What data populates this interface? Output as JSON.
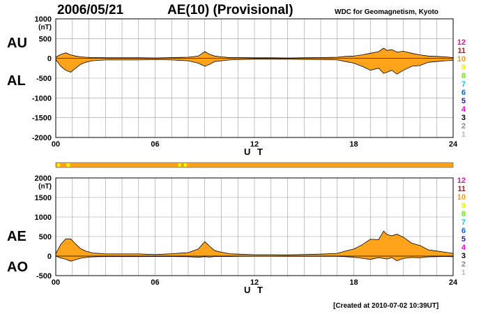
{
  "header": {
    "date": "2006/05/21",
    "title": "AE(10) (Provisional)",
    "source": "WDC for Geomagnetism, Kyoto"
  },
  "footer": {
    "created": "[Created at 2010-07-02 10:39UT]"
  },
  "chart_data": [
    {
      "type": "area",
      "panel": "AU/AL",
      "ylabel_upper": "AU",
      "ylabel_lower": "AL",
      "unit": "(nT)",
      "ylim": [
        -2000,
        1000
      ],
      "yticks": [
        1000,
        500,
        0,
        -500,
        -1000,
        -1500,
        -2000
      ],
      "xlabel": "U T",
      "xlim": [
        0,
        24
      ],
      "xticks": [
        "00",
        "06",
        "12",
        "18",
        "24"
      ],
      "grid": true,
      "fill_color": "#ffa31a",
      "series": [
        {
          "x": [
            0,
            0.3,
            0.6,
            0.9,
            1.2,
            1.5,
            1.8,
            2.2,
            2.6,
            3,
            4,
            5,
            6,
            7,
            8,
            8.6,
            9,
            9.3,
            9.6,
            10,
            10.5,
            11,
            12,
            13,
            14,
            15,
            16,
            17,
            17.5,
            18,
            18.5,
            19,
            19.5,
            19.8,
            20,
            20.3,
            20.6,
            21,
            21.5,
            22,
            22.5,
            23,
            23.5,
            24
          ],
          "values": [
            30,
            100,
            140,
            90,
            60,
            40,
            30,
            20,
            20,
            15,
            15,
            15,
            10,
            20,
            30,
            60,
            170,
            100,
            60,
            40,
            20,
            20,
            15,
            15,
            10,
            15,
            20,
            30,
            50,
            60,
            90,
            130,
            170,
            260,
            200,
            220,
            160,
            180,
            130,
            90,
            60,
            50,
            40,
            20
          ]
        },
        {
          "x": [
            0,
            0.3,
            0.6,
            0.9,
            1.2,
            1.5,
            1.8,
            2.2,
            2.6,
            3,
            4,
            5,
            6,
            7,
            8,
            8.6,
            9,
            9.3,
            9.6,
            10,
            10.5,
            11,
            12,
            13,
            14,
            15,
            16,
            17,
            17.5,
            18,
            18.5,
            19,
            19.5,
            19.8,
            20,
            20.3,
            20.6,
            21,
            21.5,
            22,
            22.5,
            23,
            23.5,
            24
          ],
          "values": [
            -30,
            -200,
            -300,
            -350,
            -250,
            -150,
            -100,
            -60,
            -50,
            -40,
            -40,
            -40,
            -30,
            -40,
            -60,
            -120,
            -200,
            -150,
            -80,
            -60,
            -40,
            -30,
            -20,
            -20,
            -20,
            -25,
            -30,
            -40,
            -80,
            -120,
            -200,
            -300,
            -250,
            -380,
            -350,
            -300,
            -400,
            -300,
            -200,
            -180,
            -100,
            -80,
            -60,
            -50
          ]
        }
      ]
    },
    {
      "type": "area",
      "panel": "AE/AO",
      "ylabel_upper": "AE",
      "ylabel_lower": "AO",
      "unit": "(nT)",
      "ylim": [
        -500,
        2000
      ],
      "yticks": [
        2000,
        1500,
        1000,
        500,
        0,
        -500
      ],
      "xlabel": "U T",
      "xlim": [
        0,
        24
      ],
      "xticks": [
        "00",
        "06",
        "12",
        "18",
        "24"
      ],
      "grid": true,
      "fill_color": "#ffa31a",
      "series": [
        {
          "x": [
            0,
            0.3,
            0.6,
            0.9,
            1.2,
            1.5,
            1.8,
            2.2,
            2.6,
            3,
            4,
            5,
            6,
            7,
            8,
            8.6,
            9,
            9.3,
            9.6,
            10,
            10.5,
            11,
            12,
            13,
            14,
            15,
            16,
            17,
            17.5,
            18,
            18.5,
            19,
            19.5,
            19.8,
            20,
            20.3,
            20.6,
            21,
            21.5,
            22,
            22.5,
            23,
            23.5,
            24
          ],
          "values": [
            60,
            300,
            440,
            440,
            310,
            190,
            130,
            80,
            70,
            55,
            55,
            55,
            40,
            60,
            90,
            180,
            370,
            250,
            140,
            100,
            60,
            50,
            35,
            35,
            30,
            40,
            50,
            70,
            130,
            180,
            290,
            430,
            420,
            640,
            550,
            520,
            560,
            480,
            330,
            270,
            160,
            130,
            100,
            70
          ]
        },
        {
          "x": [
            0,
            0.3,
            0.6,
            0.9,
            1.2,
            1.5,
            1.8,
            2.2,
            2.6,
            3,
            4,
            5,
            6,
            7,
            8,
            8.6,
            9,
            9.3,
            9.6,
            10,
            10.5,
            11,
            12,
            13,
            14,
            15,
            16,
            17,
            17.5,
            18,
            18.5,
            19,
            19.5,
            19.8,
            20,
            20.3,
            20.6,
            21,
            21.5,
            22,
            22.5,
            23,
            23.5,
            24
          ],
          "values": [
            0,
            -50,
            -80,
            -130,
            -95,
            -55,
            -35,
            -20,
            -15,
            -12,
            -12,
            -12,
            -10,
            -10,
            -15,
            -30,
            -15,
            -25,
            -10,
            -10,
            -10,
            -5,
            -3,
            -3,
            -5,
            -5,
            -5,
            -5,
            -15,
            -30,
            -55,
            -85,
            -40,
            -60,
            -75,
            -40,
            -120,
            -60,
            -35,
            -45,
            -20,
            -15,
            -10,
            -15
          ]
        }
      ]
    }
  ],
  "activity_bar": {
    "color": "#ffa31a",
    "markers": [
      {
        "start_ut": 0.1,
        "end_ut": 0.25,
        "color": "#ffff00"
      },
      {
        "start_ut": 0.65,
        "end_ut": 0.85,
        "color": "#ffff00"
      },
      {
        "start_ut": 7.4,
        "end_ut": 7.55,
        "color": "#ffff00"
      },
      {
        "start_ut": 7.75,
        "end_ut": 7.9,
        "color": "#ffff00"
      }
    ]
  },
  "kp_legend": [
    {
      "label": "12",
      "color": "#ff00aa"
    },
    {
      "label": "11",
      "color": "#ee0000"
    },
    {
      "label": "10",
      "color": "#ff9900"
    },
    {
      "label": "9",
      "color": "#eeee00"
    },
    {
      "label": "8",
      "color": "#66ee00"
    },
    {
      "label": "7",
      "color": "#00ccee"
    },
    {
      "label": "6",
      "color": "#0066ee"
    },
    {
      "label": "5",
      "color": "#2222aa"
    },
    {
      "label": "4",
      "color": "#ee00ee"
    },
    {
      "label": "3",
      "color": "#000000"
    },
    {
      "label": "2",
      "color": "#888888"
    },
    {
      "label": "1",
      "color": "#bbbbbb"
    }
  ]
}
